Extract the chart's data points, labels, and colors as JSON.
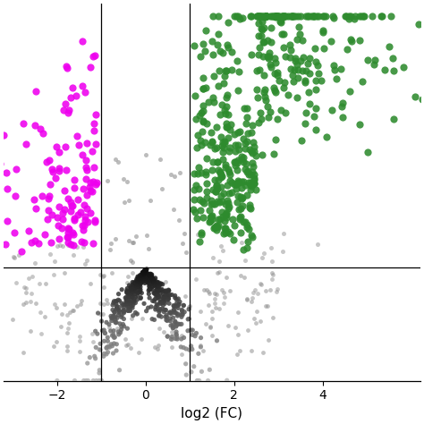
{
  "xlabel": "log2 (FC)",
  "xlim": [
    -3.2,
    6.2
  ],
  "ylim": [
    -4.5,
    10.5
  ],
  "xticks": [
    -2,
    0,
    2,
    4
  ],
  "vline1": -1.0,
  "vline2": 1.0,
  "hline": 0.0,
  "magenta_color": "#EE00EE",
  "green_color": "#2E8B2E",
  "seed": 42,
  "n_green": 500,
  "n_magenta": 130,
  "n_gray_nonsig": 60,
  "n_gray_lower": 500
}
